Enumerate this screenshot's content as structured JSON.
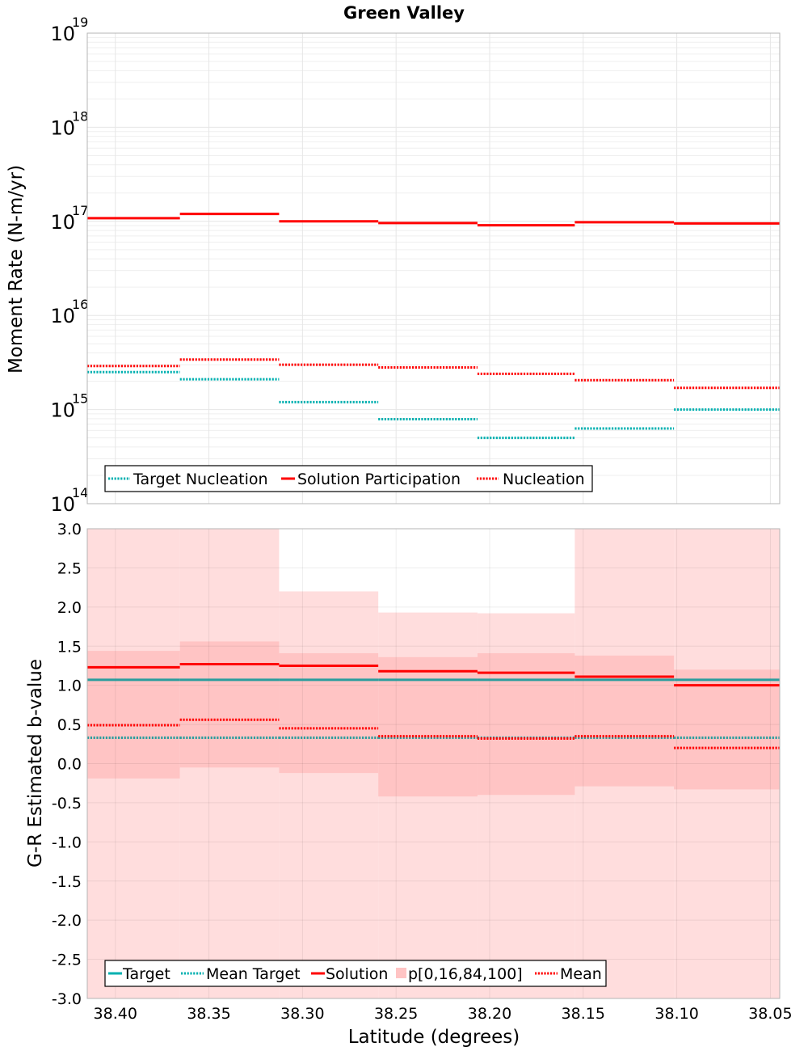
{
  "title": "Green Valley",
  "chart_data": [
    {
      "type": "line",
      "panel": "top",
      "ylabel": "Moment Rate (N-m/yr)",
      "yscale": "log",
      "ylim": [
        100000000000000.0,
        1e+19
      ],
      "y_tick_labels": [
        {
          "value": 100000000000000.0,
          "base": "10",
          "exp": "14"
        },
        {
          "value": 1000000000000000.0,
          "base": "10",
          "exp": "15"
        },
        {
          "value": 1e+16,
          "base": "10",
          "exp": "16"
        },
        {
          "value": 1e+17,
          "base": "10",
          "exp": "17"
        },
        {
          "value": 1e+18,
          "base": "10",
          "exp": "18"
        },
        {
          "value": 1e+19,
          "base": "10",
          "exp": "19"
        }
      ],
      "grid": true,
      "legend_position": "bottom-left",
      "series": [
        {
          "name": "Target Nucleation",
          "style": "dotted",
          "color": "#00b0b0",
          "values": [
            2500000000000000.0,
            2100000000000000.0,
            1200000000000000.0,
            790000000000000.0,
            500000000000000.0,
            630000000000000.0,
            1000000000000000.0
          ]
        },
        {
          "name": "Solution Participation",
          "style": "solid",
          "color": "#ff0000",
          "values": [
            1.08e+17,
            1.2e+17,
            1e+17,
            9.6e+16,
            9.1e+16,
            9.8e+16,
            9.5e+16
          ]
        },
        {
          "name": "Nucleation",
          "style": "dotted",
          "color": "#ff0000",
          "values": [
            2900000000000000.0,
            3400000000000000.0,
            3000000000000000.0,
            2800000000000000.0,
            2400000000000000.0,
            2050000000000000.0,
            1700000000000000.0
          ]
        }
      ]
    },
    {
      "type": "line",
      "panel": "bottom",
      "ylabel": "G-R Estimated b-value",
      "xlabel": "Latitude (degrees)",
      "ylim": [
        -3.0,
        3.0
      ],
      "y_ticks": [
        "3.0",
        "2.5",
        "2.0",
        "1.5",
        "1.0",
        "0.5",
        "0.0",
        "-0.5",
        "-1.0",
        "-1.5",
        "-2.0",
        "-2.5",
        "-3.0"
      ],
      "grid": true,
      "legend_position": "bottom-left",
      "band_0_100": {
        "name": "p[0,16,84,100]",
        "color": "#ffdddd",
        "lower": [
          -3.0,
          -3.0,
          -3.0,
          -3.0,
          -3.0,
          -3.0,
          -3.0
        ],
        "upper": [
          3.0,
          3.0,
          2.2,
          1.93,
          1.92,
          3.0,
          3.0
        ]
      },
      "band_16_84": {
        "color": "#ffc4c4",
        "lower": [
          -0.19,
          -0.05,
          -0.12,
          -0.42,
          -0.4,
          -0.29,
          -0.33
        ],
        "upper": [
          1.44,
          1.56,
          1.41,
          1.36,
          1.41,
          1.38,
          1.2
        ]
      },
      "series": [
        {
          "name": "Target",
          "style": "solid",
          "color": "#00b0b0",
          "values": [
            1.07,
            1.07,
            1.07,
            1.07,
            1.07,
            1.07,
            1.07
          ]
        },
        {
          "name": "Mean Target",
          "style": "dotted",
          "color": "#00b0b0",
          "values": [
            0.33,
            0.33,
            0.33,
            0.33,
            0.33,
            0.33,
            0.33
          ]
        },
        {
          "name": "Solution",
          "style": "solid",
          "color": "#ff0000",
          "values": [
            1.23,
            1.27,
            1.25,
            1.18,
            1.16,
            1.11,
            1.0
          ]
        },
        {
          "name": "Mean",
          "style": "dotted",
          "color": "#ff0000",
          "values": [
            0.49,
            0.56,
            0.45,
            0.35,
            0.32,
            0.35,
            0.2
          ]
        }
      ]
    }
  ],
  "x_axis": {
    "label": "Latitude (degrees)",
    "range": [
      38.415,
      38.045
    ],
    "reversed": true,
    "ticks": [
      38.4,
      38.35,
      38.3,
      38.25,
      38.2,
      38.15,
      38.1,
      38.05
    ],
    "tick_labels": [
      "38.40",
      "38.35",
      "38.30",
      "38.25",
      "38.20",
      "38.15",
      "38.10",
      "38.05"
    ],
    "bin_edges": [
      38.415,
      38.3655,
      38.3125,
      38.2595,
      38.2065,
      38.1545,
      38.1015,
      38.045
    ]
  },
  "legends": {
    "top": [
      "Target Nucleation",
      "Solution Participation",
      "Nucleation"
    ],
    "bottom": [
      "Target",
      "Mean Target",
      "Solution",
      "p[0,16,84,100]",
      "Mean"
    ]
  },
  "colors": {
    "cyan": "#00b0b0",
    "red": "#ff0000",
    "band_outer": "#ffdddd",
    "band_inner": "#ffc4c4",
    "grid": "#e6e6e6",
    "frame": "#b4b4b4"
  }
}
